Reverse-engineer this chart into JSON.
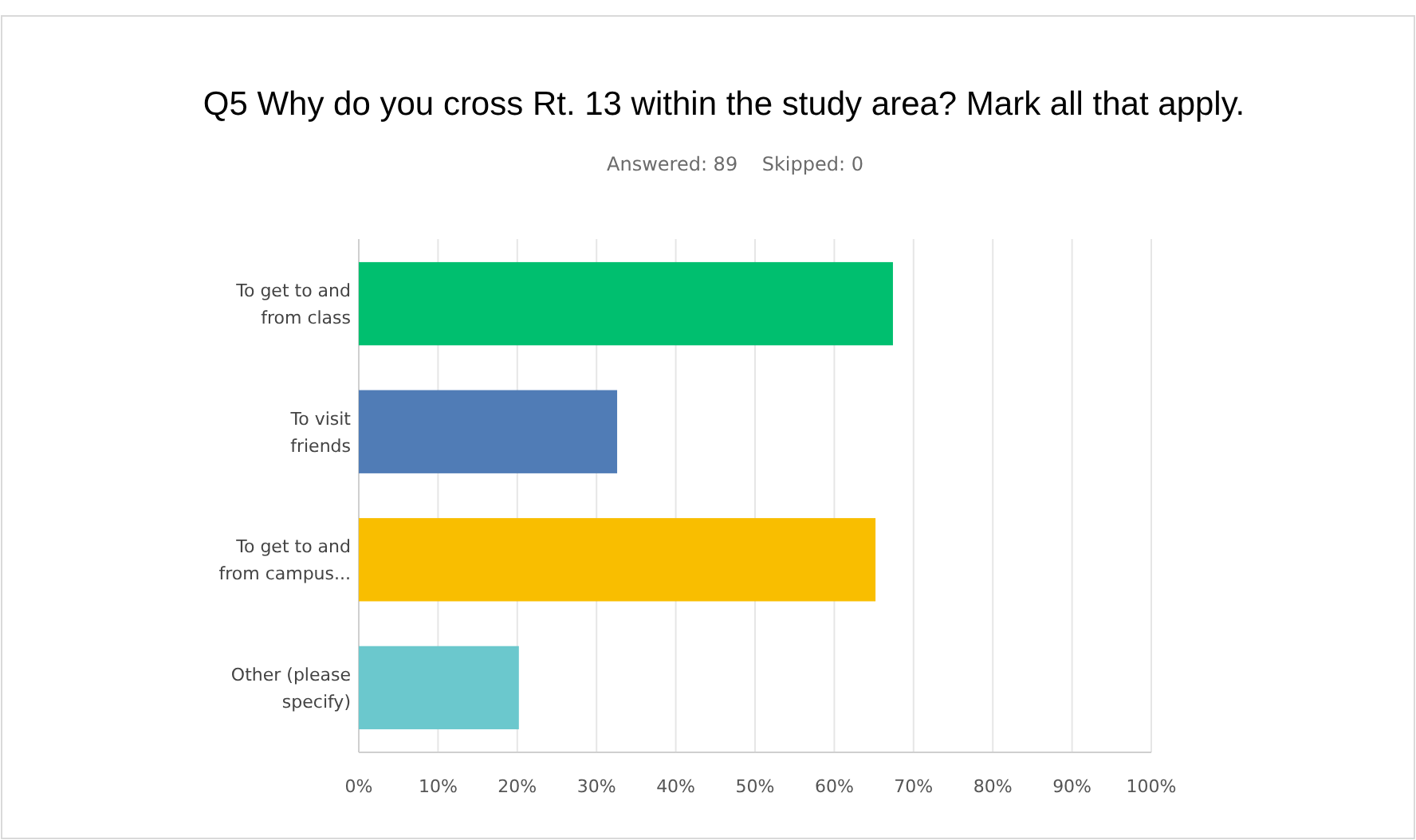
{
  "chart_data": {
    "type": "bar",
    "orientation": "horizontal",
    "title": "Q5 Why do you cross Rt. 13 within the study area? Mark all that apply.",
    "subtitle": "Answered: 89    Skipped: 0",
    "categories": [
      "To get to and from class",
      "To visit friends",
      "To get to and from campus...",
      "Other (please specify)"
    ],
    "values": [
      67.4,
      32.6,
      65.2,
      20.2
    ],
    "colors": [
      "#00bf6f",
      "#507cb6",
      "#f9be00",
      "#6bc8cd"
    ],
    "xlim": [
      0,
      100
    ],
    "xticks": [
      {
        "value": 0,
        "label": "0%"
      },
      {
        "value": 10,
        "label": "10%"
      },
      {
        "value": 20,
        "label": "20%"
      },
      {
        "value": 30,
        "label": "30%"
      },
      {
        "value": 40,
        "label": "40%"
      },
      {
        "value": 50,
        "label": "50%"
      },
      {
        "value": 60,
        "label": "60%"
      },
      {
        "value": 70,
        "label": "70%"
      },
      {
        "value": 80,
        "label": "80%"
      },
      {
        "value": 90,
        "label": "90%"
      },
      {
        "value": 100,
        "label": "100%"
      }
    ],
    "grid": "x"
  }
}
